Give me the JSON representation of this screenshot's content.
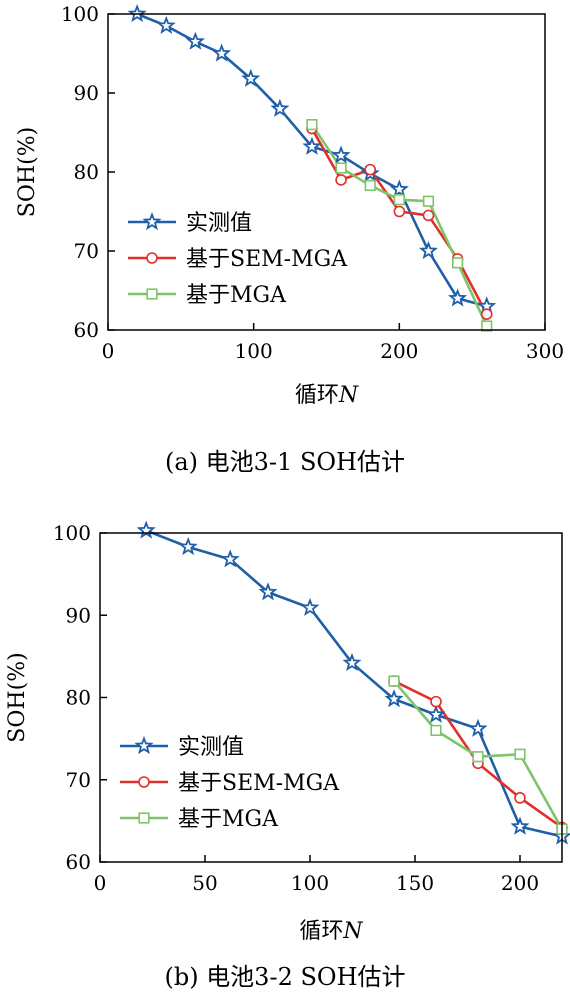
{
  "chart_data": [
    {
      "type": "line",
      "caption": "(a) 电池3-1 SOH估计",
      "xlabel": "循环",
      "xlabel_var": "N",
      "ylabel": "SOH(%)",
      "xlim": [
        0,
        300
      ],
      "ylim": [
        60,
        100
      ],
      "xticks": [
        0,
        100,
        200,
        300
      ],
      "yticks": [
        60,
        70,
        80,
        90,
        100
      ],
      "legend_position": "lower-left",
      "grid": false,
      "series": [
        {
          "name": "实测值",
          "color": "#1f5fa8",
          "marker": "star",
          "x": [
            20,
            40,
            60,
            78,
            98,
            118,
            140,
            160,
            180,
            200,
            220,
            240,
            260
          ],
          "y": [
            100,
            98.5,
            96.5,
            95,
            91.8,
            88,
            83.2,
            82.1,
            79.8,
            77.8,
            70,
            64,
            63
          ]
        },
        {
          "name": "基于SEM-MGA",
          "color": "#e0302c",
          "marker": "circle",
          "x": [
            140,
            160,
            180,
            200,
            220,
            240,
            260
          ],
          "y": [
            85.5,
            79,
            80.3,
            75,
            74.5,
            69,
            62
          ]
        },
        {
          "name": "基于MGA",
          "color": "#7ec46a",
          "marker": "square",
          "x": [
            140,
            160,
            180,
            200,
            220,
            240,
            260
          ],
          "y": [
            86,
            80.5,
            78.3,
            76.5,
            76.3,
            68.5,
            60.5
          ]
        }
      ]
    },
    {
      "type": "line",
      "caption": "(b) 电池3-2 SOH估计",
      "xlabel": "循环",
      "xlabel_var": "N",
      "ylabel": "SOH(%)",
      "xlim": [
        0,
        220
      ],
      "ylim": [
        60,
        100
      ],
      "xticks": [
        0,
        50,
        100,
        150,
        200
      ],
      "yticks": [
        60,
        70,
        80,
        90,
        100
      ],
      "legend_position": "lower-left",
      "grid": false,
      "series": [
        {
          "name": "实测值",
          "color": "#1f5fa8",
          "marker": "star",
          "x": [
            22,
            42,
            62,
            80,
            100,
            120,
            140,
            160,
            180,
            200,
            220
          ],
          "y": [
            100.3,
            98.3,
            96.8,
            92.8,
            90.9,
            84.2,
            79.8,
            77.9,
            76.2,
            64.3,
            63.1
          ]
        },
        {
          "name": "基于SEM-MGA",
          "color": "#e0302c",
          "marker": "circle",
          "x": [
            140,
            160,
            180,
            200,
            220
          ],
          "y": [
            82,
            79.5,
            72,
            67.8,
            64.2
          ]
        },
        {
          "name": "基于MGA",
          "color": "#7ec46a",
          "marker": "square",
          "x": [
            140,
            160,
            180,
            200,
            220
          ],
          "y": [
            82,
            76,
            72.8,
            73.1,
            64
          ]
        }
      ]
    }
  ]
}
